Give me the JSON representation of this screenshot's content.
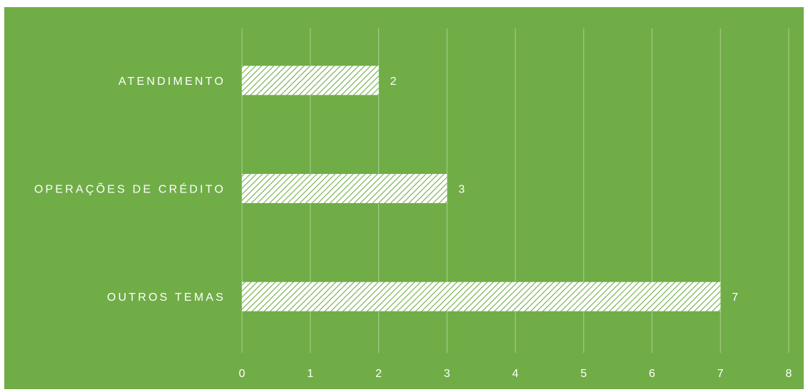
{
  "colors": {
    "background": "#70ad47",
    "bar_fill": "#ffffff",
    "bar_hatch": "#70ad47",
    "gridline": "#a9d18e",
    "text": "#ffffff"
  },
  "chart_data": {
    "type": "bar",
    "orientation": "horizontal",
    "categories": [
      "ATENDIMENTO",
      "OPERAÇÕES DE CRÉDITO",
      "OUTROS TEMAS"
    ],
    "series": [
      {
        "values": [
          2,
          3,
          7
        ]
      }
    ],
    "data_labels": [
      "2",
      "3",
      "7"
    ],
    "xlim": [
      0,
      8
    ],
    "x_ticks": [
      "0",
      "1",
      "2",
      "3",
      "4",
      "5",
      "6",
      "7",
      "8"
    ],
    "grid": "vertical",
    "legend": "none",
    "bar_pattern": "diagonal-hatch"
  }
}
